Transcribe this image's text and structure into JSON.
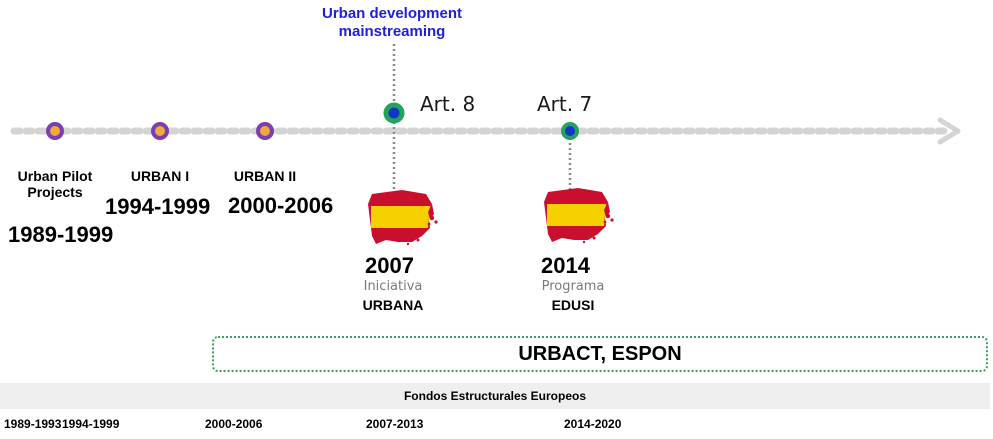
{
  "callout": {
    "line1": "Urban development",
    "line2": "mainstreaming"
  },
  "milestones": [
    {
      "label_lines": [
        "Urban Pilot",
        "Projects"
      ],
      "years": "1989-1999"
    },
    {
      "label_lines": [
        "URBAN I"
      ],
      "years": "1994-1999"
    },
    {
      "label_lines": [
        "URBAN II"
      ],
      "years": "2000-2006"
    }
  ],
  "articles": {
    "art8": "Art. 8",
    "art7": "Art. 7"
  },
  "spain_events": [
    {
      "year": "2007",
      "subtitle": "Iniciativa",
      "name": "URBANA"
    },
    {
      "year": "2014",
      "subtitle": "Programa",
      "name": "EDUSI"
    }
  ],
  "programs_box": "URBACT, ESPON",
  "fondos_label": "Fondos Estructurales Europeos",
  "periods": [
    "1989-1993",
    "1994-1999",
    "2000-2006",
    "2007-2013",
    "2014-2020"
  ],
  "colors": {
    "purple": "#7a3fb0",
    "orange": "#f0a93a",
    "green": "#22a55a",
    "blue": "#1535c8",
    "arrow": "#d4d4d4",
    "callout_text": "#1f1fd6",
    "box_border": "#3aa05a",
    "flag_red": "#c8102e",
    "flag_yellow": "#f7d000"
  }
}
